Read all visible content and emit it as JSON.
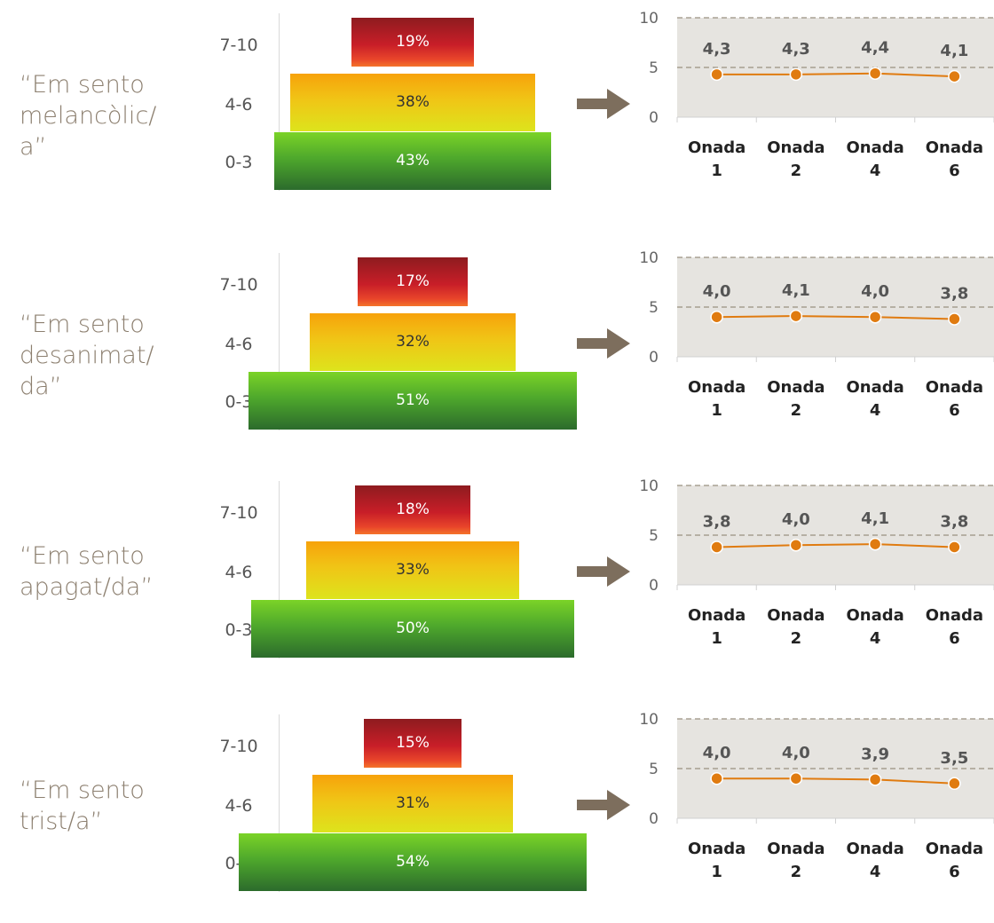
{
  "colors": {
    "top": "#b51f2a",
    "middle": "#f0c516",
    "bottom": "#4ea82c",
    "line": "#e07b10",
    "plot_bg": "#e6e4e0",
    "label_text": "#8c7f6f",
    "arrow": "#7d6e5d"
  },
  "icons": {
    "arrow": "right-arrow-icon"
  },
  "chart_data": [
    {
      "type": "bar",
      "item_label": "“Em sento\nmelancòlic/\na”",
      "categories": [
        "7-10",
        "4-6",
        "0-3"
      ],
      "values": [
        19,
        38,
        43
      ],
      "value_labels": [
        "19%",
        "38%",
        "43%"
      ],
      "trend": {
        "type": "line",
        "categories": [
          "Onada\n1",
          "Onada\n2",
          "Onada\n4",
          "Onada\n6"
        ],
        "values": [
          4.3,
          4.3,
          4.4,
          4.1
        ],
        "value_labels": [
          "4,3",
          "4,3",
          "4,4",
          "4,1"
        ],
        "ylim": [
          0,
          10
        ],
        "yticks": [
          "0",
          "5",
          "10"
        ]
      }
    },
    {
      "type": "bar",
      "item_label": "“Em sento\ndesanimat/\nda”",
      "categories": [
        "7-10",
        "4-6",
        "0-3"
      ],
      "values": [
        17,
        32,
        51
      ],
      "value_labels": [
        "17%",
        "32%",
        "51%"
      ],
      "trend": {
        "type": "line",
        "categories": [
          "Onada\n1",
          "Onada\n2",
          "Onada\n4",
          "Onada\n6"
        ],
        "values": [
          4.0,
          4.1,
          4.0,
          3.8
        ],
        "value_labels": [
          "4,0",
          "4,1",
          "4,0",
          "3,8"
        ],
        "ylim": [
          0,
          10
        ],
        "yticks": [
          "0",
          "5",
          "10"
        ]
      }
    },
    {
      "type": "bar",
      "item_label": "“Em sento\napagat/da”",
      "categories": [
        "7-10",
        "4-6",
        "0-3"
      ],
      "values": [
        18,
        33,
        50
      ],
      "value_labels": [
        "18%",
        "33%",
        "50%"
      ],
      "trend": {
        "type": "line",
        "categories": [
          "Onada\n1",
          "Onada\n2",
          "Onada\n4",
          "Onada\n6"
        ],
        "values": [
          3.8,
          4.0,
          4.1,
          3.8
        ],
        "value_labels": [
          "3,8",
          "4,0",
          "4,1",
          "3,8"
        ],
        "ylim": [
          0,
          10
        ],
        "yticks": [
          "0",
          "5",
          "10"
        ]
      }
    },
    {
      "type": "bar",
      "item_label": "“Em sento\ntrist/a”",
      "categories": [
        "7-10",
        "4-6",
        "0-3"
      ],
      "values": [
        15,
        31,
        54
      ],
      "value_labels": [
        "15%",
        "31%",
        "54%"
      ],
      "trend": {
        "type": "line",
        "categories": [
          "Onada\n1",
          "Onada\n2",
          "Onada\n4",
          "Onada\n6"
        ],
        "values": [
          4.0,
          4.0,
          3.9,
          3.5
        ],
        "value_labels": [
          "4,0",
          "4,0",
          "3,9",
          "3,5"
        ],
        "ylim": [
          0,
          10
        ],
        "yticks": [
          "0",
          "5",
          "10"
        ]
      }
    }
  ]
}
